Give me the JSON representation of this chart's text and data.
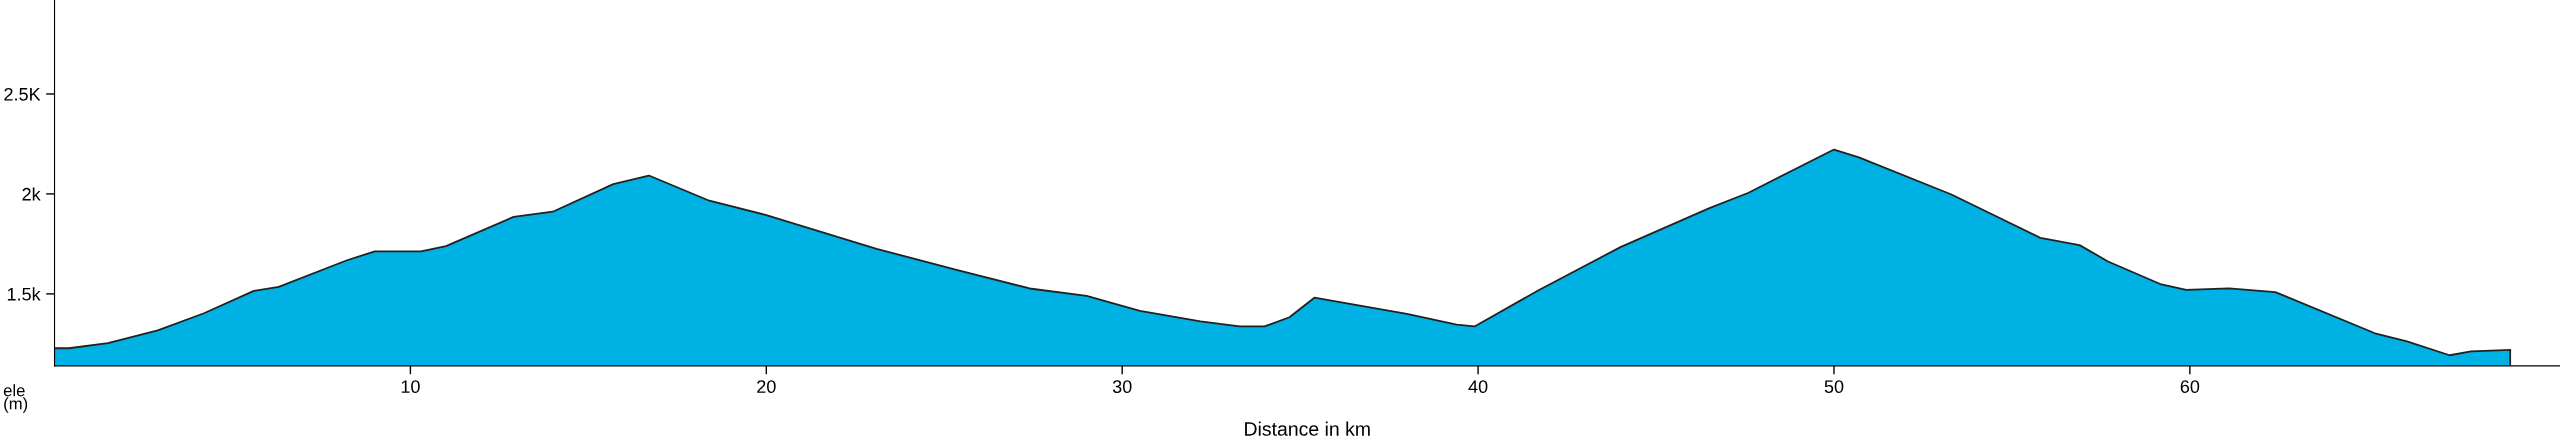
{
  "chart_data": {
    "type": "area",
    "xlabel": "Distance in km",
    "ylabel": "ele\n(m)",
    "x": [
      0,
      0.4,
      1.5,
      2.9,
      4.2,
      5.6,
      6.3,
      8.2,
      9.0,
      10.3,
      11.0,
      12.9,
      14.0,
      15.7,
      16.7,
      18.4,
      20.0,
      23.1,
      25.4,
      27.4,
      29.0,
      30.5,
      32.2,
      33.3,
      34.0,
      34.7,
      35.4,
      38.0,
      39.4,
      39.9,
      41.7,
      44.0,
      46.5,
      47.6,
      50.0,
      50.7,
      53.3,
      55.8,
      56.9,
      57.7,
      59.2,
      59.9,
      61.1,
      62.4,
      65.2,
      66.1,
      67.3,
      67.9,
      69.0
    ],
    "series": [
      {
        "color": "#00b2e3",
        "values": [
          1228,
          1228,
          1254,
          1317,
          1403,
          1515,
          1535,
          1667,
          1713,
          1713,
          1739,
          1885,
          1911,
          2049,
          2092,
          1966,
          1894,
          1725,
          1618,
          1527,
          1490,
          1415,
          1363,
          1337,
          1337,
          1383,
          1481,
          1400,
          1346,
          1337,
          1518,
          1734,
          1929,
          2006,
          2222,
          2183,
          1997,
          1780,
          1744,
          1662,
          1547,
          1520,
          1528,
          1509,
          1303,
          1262,
          1193,
          1212,
          1220
        ]
      }
    ],
    "xlim": [
      0,
      70.4
    ],
    "ylim": [
      1140,
      2970
    ],
    "xticks": [
      10,
      20,
      30,
      40,
      50,
      60
    ],
    "yticks": [
      {
        "value": 1500,
        "label": "1.5k"
      },
      {
        "value": 2000,
        "label": "2k"
      },
      {
        "value": 2500,
        "label": "2.5K"
      }
    ],
    "grid": false,
    "legend": false
  }
}
